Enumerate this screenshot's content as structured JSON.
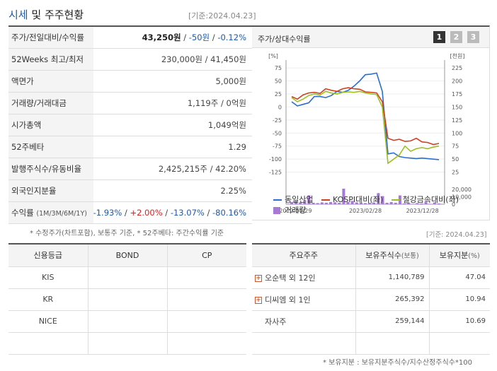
{
  "header": {
    "title_a": "시세",
    "title_b": "및 주주현황",
    "asof": "[기준:2024.04.23]"
  },
  "summary": {
    "rows": [
      {
        "label": "주가/전일대비/수익률",
        "price": "43,250원",
        "sep1": " / ",
        "change": "-50원",
        "sep2": " / ",
        "rate": "-0.12%"
      },
      {
        "label": "52Weeks 최고/최저",
        "value": "230,000원 / 41,450원"
      },
      {
        "label": "액면가",
        "value": "5,000원"
      },
      {
        "label": "거래량/거래대금",
        "value": "1,119주 / 0억원"
      },
      {
        "label": "시가총액",
        "value": "1,049억원"
      },
      {
        "label": "52주베타",
        "value": "1.29"
      },
      {
        "label": "발행주식수/유동비율",
        "value": "2,425,215주 / 42.20%"
      },
      {
        "label": "외국인지분율",
        "value": "2.25%"
      }
    ],
    "returns": {
      "label": "수익률",
      "label_sub": "(1M/3M/6M/1Y)",
      "r1": "-1.93%",
      "r2": "+2.00%",
      "r3": "-13.07%",
      "r4": "-80.16%",
      "sep": " / "
    },
    "footnote": "* 수정주가(차트포함), 보통주 기준, * 52주베타: 주간수익률 기준"
  },
  "chart": {
    "title": "주가/상대수익률",
    "nav": [
      "1",
      "2",
      "3"
    ],
    "left_unit": "[%]",
    "right_unit": "[천원]",
    "vol_ticks": [
      "20,000",
      "10,000",
      "0"
    ],
    "date_ticks": [
      "2022/04/29",
      "2023/02/28",
      "2023/12/28"
    ],
    "legend": [
      "동일산업",
      "KOSPI대비(좌)",
      "철강금속대비(좌)",
      "거래량"
    ],
    "colors": {
      "price": "#2a6ed0",
      "kospi": "#d04020",
      "steel": "#9cc020",
      "volume": "#a878d8"
    }
  },
  "chart_data": {
    "type": "line",
    "title": "주가/상대수익률",
    "x_ticks": [
      "2022/04/29",
      "2023/02/28",
      "2023/12/28"
    ],
    "y_left": {
      "label": "[%]",
      "ticks": [
        75,
        50,
        25,
        0,
        -25,
        -50,
        -75,
        -100,
        -125
      ],
      "range": [
        -135,
        90
      ]
    },
    "y_right": {
      "label": "[천원]",
      "ticks": [
        225,
        200,
        175,
        150,
        125,
        100,
        75,
        50,
        25
      ],
      "range": [
        15,
        240
      ]
    },
    "volume_axis": {
      "ticks": [
        20000,
        10000,
        0
      ],
      "range": [
        0,
        22000
      ]
    },
    "series": [
      {
        "name": "동일산업",
        "axis": "right",
        "values": [
          160,
          152,
          155,
          158,
          170,
          170,
          168,
          172,
          180,
          178,
          182,
          190,
          200,
          212,
          213,
          215,
          180,
          60,
          62,
          55,
          53,
          52,
          51,
          52,
          51,
          50,
          49
        ]
      },
      {
        "name": "KOSPI대비(좌)",
        "axis": "left",
        "values": [
          20,
          15,
          23,
          27,
          28,
          26,
          35,
          32,
          30,
          35,
          37,
          35,
          34,
          29,
          28,
          27,
          10,
          -60,
          -64,
          -62,
          -66,
          -65,
          -60,
          -67,
          -68,
          -72,
          -70
        ]
      },
      {
        "name": "철강금속대비(좌)",
        "axis": "left",
        "values": [
          18,
          10,
          15,
          22,
          25,
          23,
          30,
          27,
          25,
          28,
          29,
          28,
          30,
          27,
          25,
          24,
          0,
          -108,
          -100,
          -92,
          -75,
          -85,
          -80,
          -78,
          -80,
          -77,
          -75
        ]
      },
      {
        "name": "거래량",
        "axis": "volume",
        "values": [
          3000,
          3500,
          2500,
          5500,
          12000,
          2000,
          1500,
          2500,
          2000,
          3000,
          2500,
          2000,
          21000,
          3000,
          4500,
          2500,
          2000,
          1500,
          2000,
          2500,
          15000,
          11000,
          2000,
          3000,
          2000,
          12000,
          1000,
          2000,
          500,
          1500,
          1000,
          3500,
          500,
          2500,
          1000
        ]
      }
    ]
  },
  "credit": {
    "headers": [
      "신용등급",
      "BOND",
      "CP"
    ],
    "rows": [
      {
        "name": "KIS",
        "bond": "",
        "cp": ""
      },
      {
        "name": "KR",
        "bond": "",
        "cp": ""
      },
      {
        "name": "NICE",
        "bond": "",
        "cp": ""
      },
      {
        "name": "",
        "bond": "",
        "cp": ""
      }
    ]
  },
  "holders": {
    "asof": "[기준: 2024.04.23]",
    "headers": {
      "h1": "주요주주",
      "h2": "보유주식수",
      "h2_sub": "(보통)",
      "h3": "보유지분",
      "h3_sub": "(%)"
    },
    "rows": [
      {
        "name": "오순택 외 12인",
        "shares": "1,140,789",
        "pct": "47.04",
        "expand": true
      },
      {
        "name": "디씨엠 외 1인",
        "shares": "265,392",
        "pct": "10.94",
        "expand": true
      },
      {
        "name": "자사주",
        "shares": "259,144",
        "pct": "10.69",
        "expand": false
      },
      {
        "name": "",
        "shares": "",
        "pct": "",
        "expand": false
      }
    ],
    "footnote": "* 보유지분 : 보유지분주식수/지수산정주식수*100"
  }
}
